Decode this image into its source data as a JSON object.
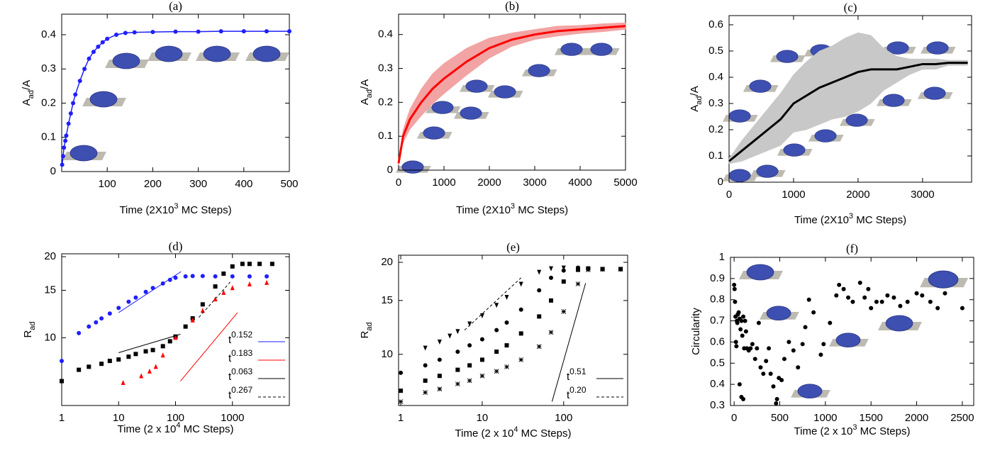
{
  "chart_data": [
    {
      "type": "line",
      "title": "(a)",
      "xlabel": [
        "Time (2X10",
        "3",
        " MC Steps)"
      ],
      "ylabel": [
        "A",
        "ad",
        "/A"
      ],
      "xlim": [
        0,
        500
      ],
      "ylim": [
        0,
        0.46
      ],
      "xticks": [
        100,
        200,
        300,
        400,
        500
      ],
      "yticks": [
        0,
        0.1,
        0.2,
        0.3,
        0.4
      ],
      "series": [
        {
          "color": "#1f1fff",
          "marker": "circle",
          "x": [
            1,
            3,
            5,
            8,
            10,
            15,
            20,
            25,
            30,
            40,
            50,
            60,
            70,
            80,
            90,
            100,
            120,
            140,
            160,
            200,
            250,
            300,
            350,
            400,
            450,
            500
          ],
          "values": [
            0.02,
            0.045,
            0.07,
            0.09,
            0.105,
            0.14,
            0.17,
            0.2,
            0.225,
            0.265,
            0.3,
            0.33,
            0.35,
            0.365,
            0.378,
            0.388,
            0.4,
            0.405,
            0.407,
            0.408,
            0.409,
            0.409,
            0.41,
            0.41,
            0.41,
            0.41
          ]
        }
      ]
    },
    {
      "type": "line",
      "title": "(b)",
      "xlabel": [
        "Time (2X10",
        "3",
        " MC Steps)"
      ],
      "ylabel": [
        "A",
        "ad",
        "/A"
      ],
      "xlim": [
        0,
        5000
      ],
      "ylim": [
        0,
        0.46
      ],
      "xticks": [
        0,
        1000,
        2000,
        3000,
        4000,
        5000
      ],
      "yticks": [
        0,
        0.1,
        0.2,
        0.3,
        0.4
      ],
      "series": [
        {
          "color": "#ff0000",
          "band_color": "#f2a3a3",
          "x": [
            0,
            100,
            250,
            500,
            750,
            1000,
            1500,
            2000,
            2500,
            3000,
            3500,
            4000,
            4500,
            5000
          ],
          "values": [
            0.02,
            0.1,
            0.15,
            0.2,
            0.24,
            0.27,
            0.32,
            0.36,
            0.385,
            0.4,
            0.41,
            0.415,
            0.42,
            0.425
          ],
          "errors": [
            0.005,
            0.02,
            0.03,
            0.04,
            0.045,
            0.045,
            0.04,
            0.03,
            0.02,
            0.015,
            0.015,
            0.012,
            0.012,
            0.01
          ]
        }
      ]
    },
    {
      "type": "line",
      "title": "(c)",
      "xlabel": [
        "Time (2X10",
        "3",
        " MC Steps)"
      ],
      "ylabel": [
        "A",
        "ad",
        "/A"
      ],
      "xlim": [
        0,
        3760
      ],
      "ylim": [
        0,
        0.635
      ],
      "xticks": [
        0,
        1000,
        2000,
        3000
      ],
      "yticks": [
        0,
        0.1,
        0.2,
        0.3,
        0.4,
        0.5,
        0.6
      ],
      "series": [
        {
          "color": "#000000",
          "band_color": "#c8c8c8",
          "x": [
            0,
            200,
            400,
            600,
            800,
            1000,
            1200,
            1400,
            1600,
            1800,
            2000,
            2200,
            2400,
            2600,
            2800,
            3000,
            3200,
            3400,
            3600,
            3700
          ],
          "values": [
            0.08,
            0.12,
            0.16,
            0.2,
            0.24,
            0.3,
            0.33,
            0.36,
            0.38,
            0.4,
            0.42,
            0.43,
            0.43,
            0.43,
            0.44,
            0.45,
            0.45,
            0.455,
            0.455,
            0.455
          ],
          "errors": [
            0.01,
            0.04,
            0.06,
            0.08,
            0.1,
            0.11,
            0.13,
            0.14,
            0.14,
            0.15,
            0.15,
            0.13,
            0.08,
            0.05,
            0.03,
            0.02,
            0.02,
            0.01,
            0.01,
            0.01
          ]
        }
      ]
    },
    {
      "type": "scatter",
      "title": "(d)",
      "xlabel": [
        "Time (2 x 10",
        "4",
        " MC Steps)"
      ],
      "ylabel": [
        "R",
        "ad"
      ],
      "log_x": true,
      "log_y": true,
      "xlim": [
        1,
        10000
      ],
      "ylim": [
        5.6,
        20.5
      ],
      "xticks": [
        1,
        10,
        100,
        1000
      ],
      "yticks": [
        10,
        15,
        20
      ],
      "legend": "bottom-right",
      "series": [
        {
          "color": "#1f1fff",
          "marker": "circle",
          "x": [
            1,
            2,
            3,
            4,
            5,
            7,
            10,
            15,
            20,
            30,
            40,
            60,
            80,
            100,
            150,
            200,
            300,
            500,
            1000,
            2000,
            4000
          ],
          "values": [
            8.2,
            10.4,
            11.0,
            11.4,
            11.8,
            12.3,
            12.9,
            13.6,
            14.1,
            14.8,
            15.3,
            15.9,
            16.4,
            16.7,
            16.9,
            16.95,
            16.95,
            16.9,
            16.9,
            16.9,
            16.9
          ]
        },
        {
          "color": "#000000",
          "marker": "square",
          "x": [
            1,
            2,
            3,
            5,
            7,
            10,
            15,
            20,
            30,
            40,
            60,
            80,
            100,
            150,
            200,
            300,
            500,
            700,
            1000,
            1500,
            2000,
            3000,
            5000
          ],
          "values": [
            6.9,
            7.6,
            7.8,
            8.0,
            8.2,
            8.3,
            8.5,
            8.7,
            8.9,
            9.0,
            9.3,
            9.7,
            10.1,
            11.0,
            11.8,
            13.3,
            15.5,
            17.3,
            18.4,
            18.8,
            18.8,
            18.8,
            18.8
          ]
        },
        {
          "color": "#ff0000",
          "marker": "triangle",
          "x": [
            12,
            25,
            35,
            45,
            60,
            100,
            200,
            300,
            500,
            700,
            1000,
            2000,
            4000
          ],
          "values": [
            6.8,
            7.2,
            7.5,
            7.8,
            8.6,
            10.0,
            11.6,
            12.6,
            13.9,
            14.7,
            15.3,
            15.8,
            16.0
          ]
        }
      ],
      "fits": [
        {
          "label": "t",
          "exponent": "0.152",
          "color": "#1f1fff",
          "dashed": false,
          "x": [
            10,
            125
          ],
          "y": [
            12.4,
            17.6
          ]
        },
        {
          "label": "t",
          "exponent": "0.183",
          "color": "#ff0000",
          "dashed": false,
          "x": [
            122,
            1230
          ],
          "y": [
            6.9,
            12.4
          ]
        },
        {
          "label": "t",
          "exponent": "0.063",
          "color": "#000000",
          "dashed": false,
          "x": [
            10,
            122
          ],
          "y": [
            8.8,
            10.3
          ]
        },
        {
          "label": "t",
          "exponent": "0.267",
          "color": "#000000",
          "dashed": true,
          "x": [
            257,
            916
          ],
          "y": [
            11.9,
            16.1
          ]
        }
      ]
    },
    {
      "type": "scatter",
      "title": "(e)",
      "xlabel": [
        "Time (2 x 10",
        "4",
        " MC Steps)"
      ],
      "ylabel": [
        "R",
        "ad"
      ],
      "log_x": true,
      "log_y": true,
      "xlim": [
        0.94,
        610
      ],
      "ylim": [
        6.8,
        21.1
      ],
      "xticks": [
        1,
        10,
        100
      ],
      "yticks": [
        10,
        15,
        20
      ],
      "legend": "bottom-right",
      "series": [
        {
          "color": "#000000",
          "marker": "triangle-down",
          "x": [
            2,
            3,
            4,
            5,
            7,
            10,
            15,
            20,
            30,
            50,
            70,
            100,
            150,
            200,
            300,
            500
          ],
          "values": [
            10.5,
            11.0,
            11.5,
            11.9,
            12.6,
            13.4,
            14.5,
            15.4,
            17.0,
            18.6,
            19.1,
            19.2,
            19.1,
            19.0,
            19.0,
            19.0
          ]
        },
        {
          "color": "#000000",
          "marker": "circle",
          "x": [
            1,
            2,
            3,
            5,
            7,
            10,
            15,
            20,
            30,
            50,
            70,
            100,
            150,
            200,
            300,
            500
          ],
          "values": [
            8.7,
            9.2,
            9.6,
            10.2,
            10.7,
            11.2,
            12.0,
            12.7,
            14.0,
            16.2,
            17.8,
            18.8,
            19.2,
            19.1,
            19.0,
            19.0
          ]
        },
        {
          "color": "#000000",
          "marker": "square",
          "x": [
            1,
            2,
            3,
            5,
            7,
            10,
            15,
            20,
            30,
            50,
            70,
            100,
            150,
            200,
            300,
            500
          ],
          "values": [
            7.6,
            8.2,
            8.5,
            8.9,
            9.2,
            9.6,
            10.2,
            10.7,
            11.7,
            13.3,
            15.0,
            17.3,
            18.9,
            19.1,
            19.0,
            19.0
          ]
        },
        {
          "color": "#000000",
          "marker": "star",
          "x": [
            1,
            2,
            3,
            5,
            7,
            10,
            15,
            20,
            30,
            50,
            70,
            100,
            150,
            200,
            300,
            500
          ],
          "values": [
            7.0,
            7.5,
            7.7,
            8.0,
            8.2,
            8.5,
            8.8,
            9.1,
            9.6,
            10.6,
            11.8,
            13.8,
            17.0,
            18.9,
            19.0,
            19.0
          ]
        }
      ],
      "fits": [
        {
          "label": "t",
          "exponent": "0.51",
          "color": "#000000",
          "dashed": false,
          "x": [
            72,
            186
          ],
          "y": [
            7.0,
            17.1
          ]
        },
        {
          "label": "t",
          "exponent": "0.20",
          "color": "#000000",
          "dashed": true,
          "x": [
            6.07,
            30
          ],
          "y": [
            12.0,
            17.8
          ]
        }
      ]
    },
    {
      "type": "scatter",
      "title": "(f)",
      "xlabel": [
        "Time (2 x 10",
        "3",
        " MC Steps)"
      ],
      "ylabel": [
        "Circularity"
      ],
      "xlim": [
        -40,
        2625
      ],
      "ylim": [
        0.3,
        1
      ],
      "xticks": [
        0,
        500,
        1000,
        1500,
        2000,
        2500
      ],
      "yticks": [
        0.3,
        0.4,
        0.5,
        0.6,
        0.7,
        0.8,
        0.9,
        1
      ],
      "series": [
        {
          "color": "#000000",
          "marker": "circle",
          "x": [
            0,
            5,
            10,
            20,
            15,
            30,
            40,
            50,
            60,
            25,
            35,
            70,
            80,
            90,
            100,
            110,
            120,
            130,
            140,
            60,
            80,
            100,
            160,
            180,
            200,
            230,
            250,
            270,
            290,
            320,
            350,
            380,
            400,
            430,
            470,
            460,
            490,
            520,
            550,
            600,
            650,
            700,
            750,
            780,
            820,
            870,
            950,
            980,
            1050,
            1120,
            1150,
            1200,
            1250,
            1300,
            1380,
            1430,
            1470,
            1500,
            1560,
            1620,
            1680,
            1750,
            1820,
            1900,
            2000,
            2060,
            2150,
            2230,
            2310,
            2500
          ],
          "values": [
            0.87,
            0.85,
            0.79,
            0.6,
            0.72,
            0.7,
            0.73,
            0.74,
            0.71,
            0.58,
            0.69,
            0.66,
            0.7,
            0.63,
            0.72,
            0.57,
            0.7,
            0.65,
            0.57,
            0.4,
            0.34,
            0.33,
            0.56,
            0.57,
            0.59,
            0.52,
            0.57,
            0.69,
            0.48,
            0.45,
            0.51,
            0.57,
            0.45,
            0.39,
            0.33,
            0.31,
            0.43,
            0.42,
            0.52,
            0.6,
            0.56,
            0.48,
            0.59,
            0.67,
            0.8,
            0.74,
            0.54,
            0.59,
            0.69,
            0.82,
            0.87,
            0.85,
            0.81,
            0.79,
            0.88,
            0.81,
            0.85,
            0.76,
            0.79,
            0.79,
            0.82,
            0.81,
            0.77,
            0.79,
            0.83,
            0.82,
            0.79,
            0.76,
            0.83,
            0.76
          ]
        }
      ]
    }
  ]
}
